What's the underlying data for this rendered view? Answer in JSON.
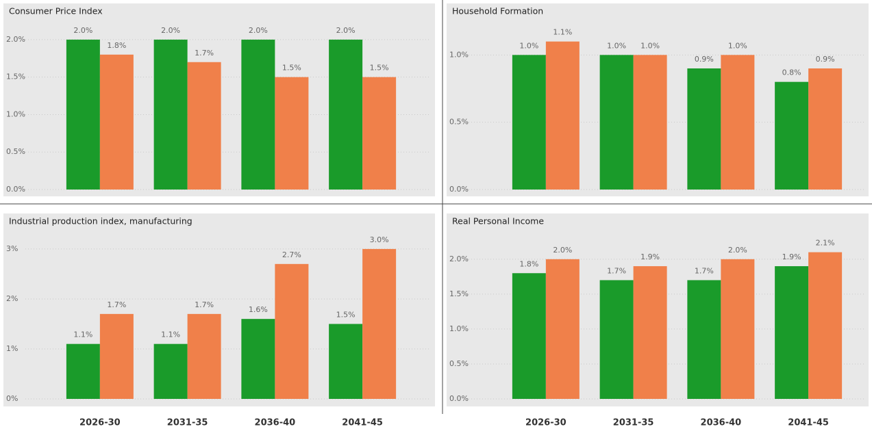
{
  "chart_data": [
    {
      "type": "bar",
      "title": "Consumer Price Index",
      "categories": [
        null,
        null,
        null,
        null
      ],
      "series": [
        {
          "color": "#1a9b2a",
          "values": [
            2.0,
            2.0,
            2.0,
            2.0
          ],
          "value_labels": [
            "2.0%",
            "2.0%",
            "2.0%",
            "2.0%"
          ]
        },
        {
          "color": "#f0804a",
          "values": [
            1.8,
            1.7,
            1.5,
            1.5
          ],
          "value_labels": [
            "1.8%",
            "1.7%",
            "1.5%",
            "1.5%"
          ]
        }
      ],
      "ylim": [
        0,
        2.2
      ],
      "yticks": [
        {
          "value": 0,
          "label": "0.0%"
        },
        {
          "value": 0.5,
          "label": "0.5%"
        },
        {
          "value": 1.0,
          "label": "1.0%"
        },
        {
          "value": 1.5,
          "label": "1.5%"
        },
        {
          "value": 2.0,
          "label": "2.0%"
        }
      ],
      "grid": true
    },
    {
      "type": "bar",
      "title": "Household Formation",
      "categories": [
        null,
        null,
        null,
        null
      ],
      "series": [
        {
          "color": "#1a9b2a",
          "values": [
            1.0,
            1.0,
            0.9,
            0.8
          ],
          "value_labels": [
            "1.0%",
            "1.0%",
            "0.9%",
            "0.8%"
          ]
        },
        {
          "color": "#f0804a",
          "values": [
            1.1,
            1.0,
            1.0,
            0.9
          ],
          "value_labels": [
            "1.1%",
            "1.0%",
            "1.0%",
            "0.9%"
          ]
        }
      ],
      "ylim": [
        0,
        1.2
      ],
      "yticks": [
        {
          "value": 0,
          "label": "0.0%"
        },
        {
          "value": 0.5,
          "label": "0.5%"
        },
        {
          "value": 1.0,
          "label": "1.0%"
        }
      ],
      "grid": true
    },
    {
      "type": "bar",
      "title": "Industrial production index, manufacturing",
      "categories": [
        "2026-30",
        "2031-35",
        "2036-40",
        "2041-45"
      ],
      "series": [
        {
          "color": "#1a9b2a",
          "values": [
            1.1,
            1.1,
            1.6,
            1.5
          ],
          "value_labels": [
            "1.1%",
            "1.1%",
            "1.6%",
            "1.5%"
          ]
        },
        {
          "color": "#f0804a",
          "values": [
            1.7,
            1.7,
            2.7,
            3.0
          ],
          "value_labels": [
            "1.7%",
            "1.7%",
            "2.7%",
            "3.0%"
          ]
        }
      ],
      "ylim": [
        0,
        3.3
      ],
      "yticks": [
        {
          "value": 0,
          "label": "0%"
        },
        {
          "value": 1,
          "label": "1%"
        },
        {
          "value": 2,
          "label": "2%"
        },
        {
          "value": 3,
          "label": "3%"
        }
      ],
      "grid": true
    },
    {
      "type": "bar",
      "title": "Real Personal Income",
      "categories": [
        "2026-30",
        "2031-35",
        "2036-40",
        "2041-45"
      ],
      "series": [
        {
          "color": "#1a9b2a",
          "values": [
            1.8,
            1.7,
            1.7,
            1.9
          ],
          "value_labels": [
            "1.8%",
            "1.7%",
            "1.7%",
            "1.9%"
          ]
        },
        {
          "color": "#f0804a",
          "values": [
            2.0,
            1.9,
            2.0,
            2.1
          ],
          "value_labels": [
            "2.0%",
            "1.9%",
            "2.0%",
            "2.1%"
          ]
        }
      ],
      "ylim": [
        0,
        2.4
      ],
      "yticks": [
        {
          "value": 0,
          "label": "0.0%"
        },
        {
          "value": 0.5,
          "label": "0.5%"
        },
        {
          "value": 1.0,
          "label": "1.0%"
        },
        {
          "value": 1.5,
          "label": "1.5%"
        },
        {
          "value": 2.0,
          "label": "2.0%"
        }
      ],
      "grid": true
    }
  ]
}
